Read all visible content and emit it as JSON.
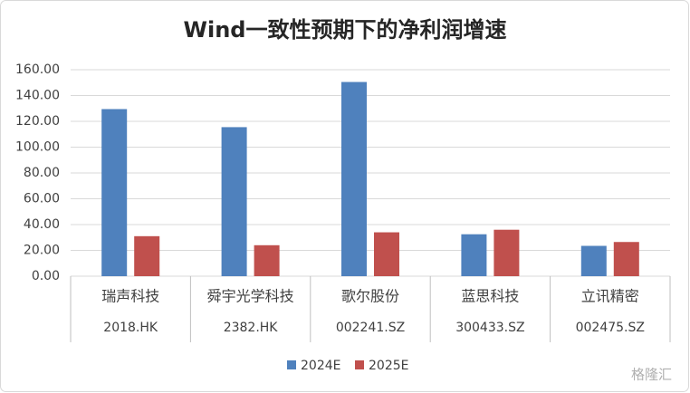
{
  "chart_data": {
    "type": "bar",
    "title": "Wind一致性预期下的净利润增速",
    "categories": [
      "瑞声科技",
      "舜宇光学科技",
      "歌尔股份",
      "蓝思科技",
      "立讯精密"
    ],
    "category_codes": [
      "2018.HK",
      "2382.HK",
      "002241.SZ",
      "300433.SZ",
      "002475.SZ"
    ],
    "series": [
      {
        "name": "2024E",
        "color": "#4f81bd",
        "values": [
          129.5,
          115.5,
          150.5,
          32.5,
          23.5
        ]
      },
      {
        "name": "2025E",
        "color": "#c0504d",
        "values": [
          31,
          24,
          34,
          36,
          26.5
        ]
      }
    ],
    "ylim": [
      0,
      160
    ],
    "yticks": [
      {
        "value": 0,
        "label": "0.00"
      },
      {
        "value": 20,
        "label": "20.00"
      },
      {
        "value": 40,
        "label": "40.00"
      },
      {
        "value": 60,
        "label": "60.00"
      },
      {
        "value": 80,
        "label": "80.00"
      },
      {
        "value": 100,
        "label": "100.00"
      },
      {
        "value": 120,
        "label": "120.00"
      },
      {
        "value": 140,
        "label": "140.00"
      },
      {
        "value": 160,
        "label": "160.00"
      }
    ],
    "grid": true,
    "legend": "bottom",
    "watermark": "格隆汇"
  }
}
